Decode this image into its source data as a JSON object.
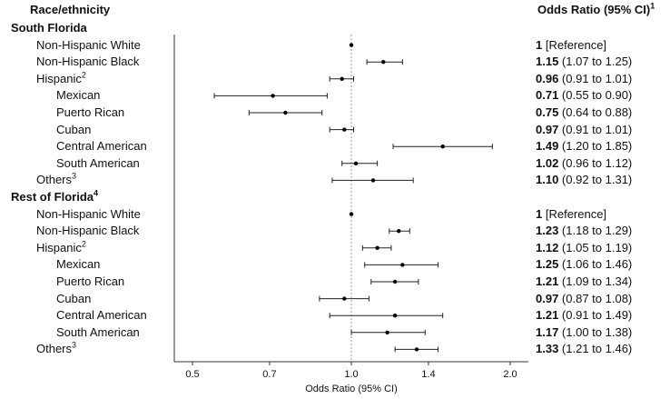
{
  "headers": {
    "left": "Race/ethnicity",
    "right": "Odds Ratio (95% CI)",
    "right_sup": "1"
  },
  "axis": {
    "xlabel": "Odds Ratio (95% CI)",
    "ticks": [
      "0.5",
      "0.7",
      "1.0",
      "1.4",
      "2.0"
    ]
  },
  "chart_data": {
    "type": "forest",
    "xscale": "log",
    "xlim": [
      0.5,
      2.0
    ],
    "reference_line": 1.0,
    "xlabel": "Odds Ratio (95% CI)",
    "xticks": [
      0.5,
      0.7,
      1.0,
      1.4,
      2.0
    ],
    "rows": [
      {
        "kind": "section",
        "label": "South Florida",
        "sup": ""
      },
      {
        "kind": "row",
        "indent": 1,
        "label": "Non-Hispanic White",
        "sup": "",
        "or": 1.0,
        "lo": null,
        "hi": null,
        "or_text": "1",
        "ci_text": " [Reference]",
        "ref": true
      },
      {
        "kind": "row",
        "indent": 1,
        "label": "Non-Hispanic Black",
        "sup": "",
        "or": 1.15,
        "lo": 1.07,
        "hi": 1.25,
        "or_text": "1.15",
        "ci_text": " (1.07 to 1.25)"
      },
      {
        "kind": "row",
        "indent": 1,
        "label": "Hispanic",
        "sup": "2",
        "or": 0.96,
        "lo": 0.91,
        "hi": 1.01,
        "or_text": "0.96",
        "ci_text": " (0.91 to 1.01)"
      },
      {
        "kind": "row",
        "indent": 2,
        "label": "Mexican",
        "sup": "",
        "or": 0.71,
        "lo": 0.55,
        "hi": 0.9,
        "or_text": "0.71",
        "ci_text": " (0.55 to 0.90)"
      },
      {
        "kind": "row",
        "indent": 2,
        "label": "Puerto Rican",
        "sup": "",
        "or": 0.75,
        "lo": 0.64,
        "hi": 0.88,
        "or_text": "0.75",
        "ci_text": " (0.64 to 0.88)"
      },
      {
        "kind": "row",
        "indent": 2,
        "label": "Cuban",
        "sup": "",
        "or": 0.97,
        "lo": 0.91,
        "hi": 1.01,
        "or_text": "0.97",
        "ci_text": " (0.91 to 1.01)"
      },
      {
        "kind": "row",
        "indent": 2,
        "label": "Central American",
        "sup": "",
        "or": 1.49,
        "lo": 1.2,
        "hi": 1.85,
        "or_text": "1.49",
        "ci_text": " (1.20 to 1.85)"
      },
      {
        "kind": "row",
        "indent": 2,
        "label": "South American",
        "sup": "",
        "or": 1.02,
        "lo": 0.96,
        "hi": 1.12,
        "or_text": "1.02",
        "ci_text": " (0.96 to 1.12)"
      },
      {
        "kind": "row",
        "indent": 1,
        "label": "Others",
        "sup": "3",
        "or": 1.1,
        "lo": 0.92,
        "hi": 1.31,
        "or_text": "1.10",
        "ci_text": " (0.92 to 1.31)"
      },
      {
        "kind": "section",
        "label": "Rest of Florida",
        "sup": "4"
      },
      {
        "kind": "row",
        "indent": 1,
        "label": "Non-Hispanic White",
        "sup": "",
        "or": 1.0,
        "lo": null,
        "hi": null,
        "or_text": "1",
        "ci_text": " [Reference]",
        "ref": true
      },
      {
        "kind": "row",
        "indent": 1,
        "label": "Non-Hispanic Black",
        "sup": "",
        "or": 1.23,
        "lo": 1.18,
        "hi": 1.29,
        "or_text": "1.23",
        "ci_text": " (1.18 to 1.29)"
      },
      {
        "kind": "row",
        "indent": 1,
        "label": "Hispanic",
        "sup": "2",
        "or": 1.12,
        "lo": 1.05,
        "hi": 1.19,
        "or_text": "1.12",
        "ci_text": " (1.05 to 1.19)"
      },
      {
        "kind": "row",
        "indent": 2,
        "label": "Mexican",
        "sup": "",
        "or": 1.25,
        "lo": 1.06,
        "hi": 1.46,
        "or_text": "1.25",
        "ci_text": " (1.06 to 1.46)"
      },
      {
        "kind": "row",
        "indent": 2,
        "label": "Puerto Rican",
        "sup": "",
        "or": 1.21,
        "lo": 1.09,
        "hi": 1.34,
        "or_text": "1.21",
        "ci_text": " (1.09 to 1.34)"
      },
      {
        "kind": "row",
        "indent": 2,
        "label": "Cuban",
        "sup": "",
        "or": 0.97,
        "lo": 0.87,
        "hi": 1.08,
        "or_text": "0.97",
        "ci_text": " (0.87 to 1.08)"
      },
      {
        "kind": "row",
        "indent": 2,
        "label": "Central American",
        "sup": "",
        "or": 1.21,
        "lo": 0.91,
        "hi": 1.49,
        "or_text": "1.21",
        "ci_text": " (0.91 to 1.49)"
      },
      {
        "kind": "row",
        "indent": 2,
        "label": "South American",
        "sup": "",
        "or": 1.17,
        "lo": 1.0,
        "hi": 1.38,
        "or_text": "1.17",
        "ci_text": " (1.00 to 1.38)"
      },
      {
        "kind": "row",
        "indent": 1,
        "label": "Others",
        "sup": "3",
        "or": 1.33,
        "lo": 1.21,
        "hi": 1.46,
        "or_text": "1.33",
        "ci_text": " (1.21 to 1.46)"
      }
    ]
  }
}
